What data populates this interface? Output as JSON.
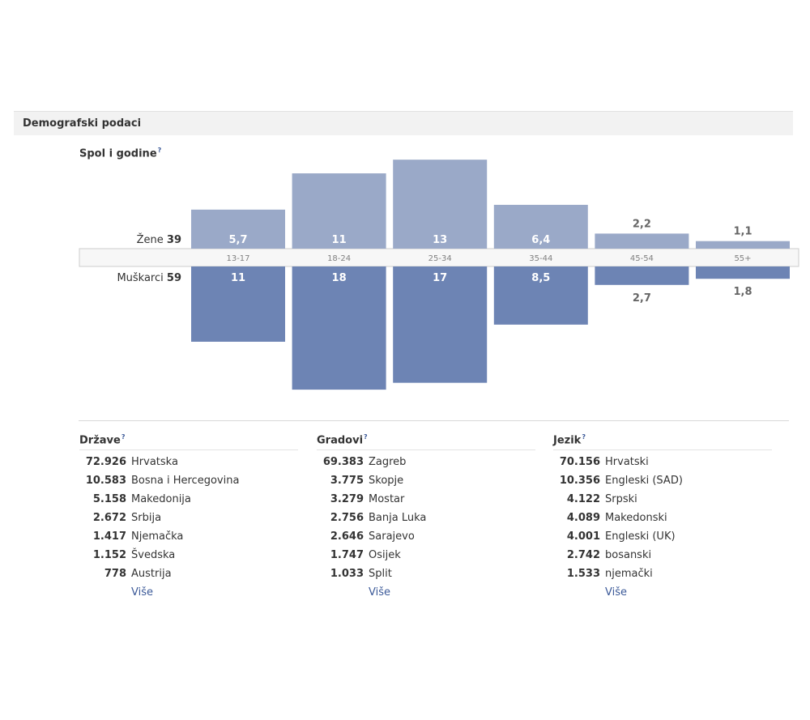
{
  "header": {
    "title": "Demografski podaci"
  },
  "gender_age": {
    "title": "Spol i godine",
    "help": "?",
    "women_label": "Žene",
    "women_total": "39",
    "men_label": "Muškarci",
    "men_total": "59"
  },
  "chart_data": {
    "type": "bar",
    "title": "Spol i godine",
    "categories": [
      "13-17",
      "18-24",
      "25-34",
      "35-44",
      "45-54",
      "55+"
    ],
    "series": [
      {
        "name": "Žene",
        "values": [
          5.7,
          11,
          13,
          6.4,
          2.2,
          1.1
        ],
        "labels": [
          "5,7",
          "11",
          "13",
          "6,4",
          "2,2",
          "1,1"
        ],
        "color": "#9aa9c8"
      },
      {
        "name": "Muškarci",
        "values": [
          11,
          18,
          17,
          8.5,
          2.7,
          1.8
        ],
        "labels": [
          "11",
          "18",
          "17",
          "8,5",
          "2,7",
          "1,8"
        ],
        "color": "#6d84b4"
      }
    ],
    "totals": {
      "Žene": 39,
      "Muškarci": 59
    },
    "ylim": [
      0,
      18
    ]
  },
  "countries": {
    "title": "Države",
    "help": "?",
    "rows": [
      {
        "count": "72.926",
        "name": "Hrvatska"
      },
      {
        "count": "10.583",
        "name": "Bosna i Hercegovina"
      },
      {
        "count": "5.158",
        "name": "Makedonija"
      },
      {
        "count": "2.672",
        "name": "Srbija"
      },
      {
        "count": "1.417",
        "name": "Njemačka"
      },
      {
        "count": "1.152",
        "name": "Švedska"
      },
      {
        "count": "778",
        "name": "Austrija"
      }
    ],
    "more": "Više"
  },
  "cities": {
    "title": "Gradovi",
    "help": "?",
    "rows": [
      {
        "count": "69.383",
        "name": "Zagreb"
      },
      {
        "count": "3.775",
        "name": "Skopje"
      },
      {
        "count": "3.279",
        "name": "Mostar"
      },
      {
        "count": "2.756",
        "name": "Banja Luka"
      },
      {
        "count": "2.646",
        "name": "Sarajevo"
      },
      {
        "count": "1.747",
        "name": "Osijek"
      },
      {
        "count": "1.033",
        "name": "Split"
      }
    ],
    "more": "Više"
  },
  "languages": {
    "title": "Jezik",
    "help": "?",
    "rows": [
      {
        "count": "70.156",
        "name": "Hrvatski"
      },
      {
        "count": "10.356",
        "name": "Engleski (SAD)"
      },
      {
        "count": "4.122",
        "name": "Srpski"
      },
      {
        "count": "4.089",
        "name": "Makedonski"
      },
      {
        "count": "4.001",
        "name": "Engleski (UK)"
      },
      {
        "count": "2.742",
        "name": "bosanski"
      },
      {
        "count": "1.533",
        "name": "njemački"
      }
    ],
    "more": "Više"
  }
}
